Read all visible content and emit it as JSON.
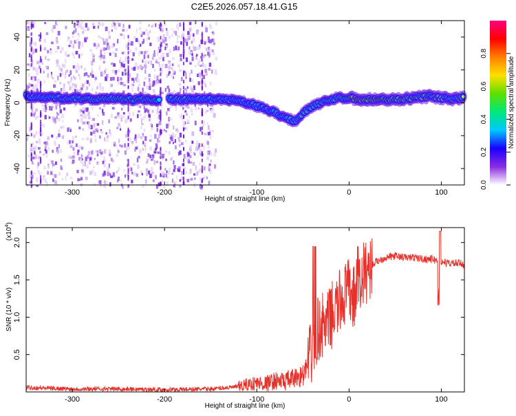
{
  "title": "C2E5.2026.057.18.41.G15",
  "colors": {
    "snr_line": "#e8302a",
    "axis": "#000000"
  },
  "chart_data": [
    {
      "type": "heatmap",
      "xlabel": "Height of straight line (km)",
      "ylabel": "Frequency (Hz)",
      "xlim": [
        -350,
        125
      ],
      "ylim": [
        -50,
        50
      ],
      "xticks": [
        -300,
        -200,
        -100,
        0,
        100
      ],
      "yticks": [
        -40,
        -20,
        0,
        20,
        40
      ],
      "ridge": {
        "x": [
          -350,
          -320,
          -300,
          -280,
          -260,
          -240,
          -220,
          -205,
          -195,
          -180,
          -160,
          -140,
          -120,
          -110,
          -100,
          -90,
          -80,
          -70,
          -60,
          -55,
          -50,
          -45,
          -40,
          -30,
          -20,
          -10,
          0,
          10,
          30,
          50,
          70,
          90,
          110,
          125
        ],
        "freq": [
          4,
          3,
          3,
          2,
          3,
          2,
          2,
          2,
          2,
          2,
          2,
          2,
          1,
          0,
          -2,
          -4,
          -6,
          -9,
          -11,
          -10,
          -6,
          -4,
          -2,
          0,
          2,
          3,
          3,
          2,
          2,
          2,
          3,
          4,
          2,
          3
        ]
      },
      "colorbar": {
        "label": "Normalized spectral amplitude",
        "range": [
          0,
          1
        ],
        "ticks": [
          "0.0",
          "0.2",
          "0.4",
          "0.6",
          "0.8"
        ],
        "colormap": [
          "#ffffff",
          "#8a2be2",
          "#1a00ff",
          "#00c8ff",
          "#00e87a",
          "#5ce000",
          "#ffe000",
          "#ff7f00",
          "#ff0000",
          "#ff0080"
        ]
      }
    },
    {
      "type": "line",
      "xlabel": "Height of straight line (km)",
      "ylabel": "SNR (10 * v/v)",
      "yscale_label": "(x10",
      "yscale_exp": "4",
      "xlim": [
        -350,
        125
      ],
      "ylim": [
        0,
        2.2
      ],
      "xticks": [
        -300,
        -200,
        -100,
        0,
        100
      ],
      "yticks": [
        "0.5",
        "1.0",
        "1.5",
        "2.0"
      ],
      "series": [
        {
          "x": [
            -350,
            -300,
            -250,
            -200,
            -150,
            -120,
            -110,
            -100,
            -90,
            -80,
            -70,
            -60,
            -50,
            -45,
            -40,
            -35,
            -30,
            -25,
            -20,
            -15,
            -10,
            -5,
            0,
            5,
            10,
            15,
            20,
            25,
            30,
            40,
            50,
            60,
            70,
            80,
            90,
            95,
            100,
            110,
            120,
            125
          ],
          "y": [
            0.06,
            0.04,
            0.04,
            0.03,
            0.04,
            0.07,
            0.1,
            0.12,
            0.11,
            0.15,
            0.14,
            0.18,
            0.22,
            0.35,
            0.55,
            0.8,
            0.9,
            0.85,
            1.0,
            1.1,
            1.2,
            1.3,
            1.35,
            1.25,
            1.4,
            1.55,
            1.65,
            1.7,
            1.75,
            1.8,
            1.82,
            1.8,
            1.8,
            1.78,
            1.78,
            1.76,
            1.74,
            1.72,
            1.72,
            1.7
          ]
        }
      ]
    }
  ]
}
